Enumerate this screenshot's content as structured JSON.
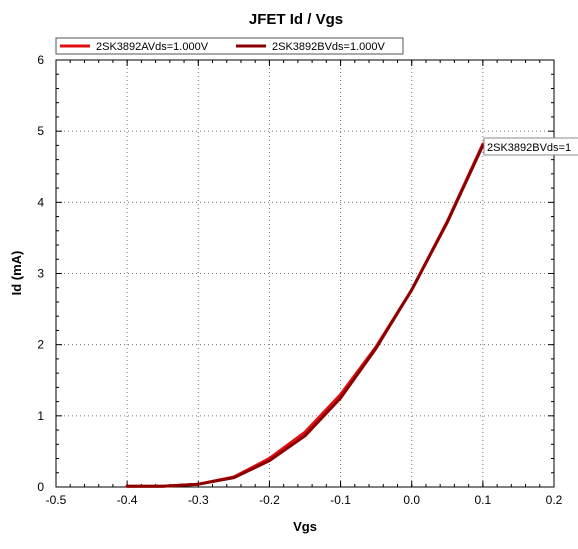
{
  "chart_data": {
    "type": "line",
    "title": "JFET Id / Vgs",
    "xlabel": "Vgs",
    "ylabel": "Id (mA)",
    "xlim": [
      -0.5,
      0.2
    ],
    "ylim": [
      0,
      6
    ],
    "xticks": [
      "-0.5",
      "-0.4",
      "-0.3",
      "-0.2",
      "-0.1",
      "0.0",
      "0.1",
      "0.2"
    ],
    "yticks": [
      "0",
      "1",
      "2",
      "3",
      "4",
      "5",
      "6"
    ],
    "grid": true,
    "legend_position": "top-left",
    "series": [
      {
        "name": "2SK3892AVds=1.000V",
        "color": "#e01010",
        "x": [
          -0.4,
          -0.35,
          -0.3,
          -0.25,
          -0.2,
          -0.15,
          -0.1,
          -0.05,
          0.0,
          0.05,
          0.1
        ],
        "y": [
          0.01,
          0.01,
          0.04,
          0.14,
          0.4,
          0.77,
          1.3,
          1.97,
          2.77,
          3.73,
          4.82
        ]
      },
      {
        "name": "2SK3892BVds=1.000V",
        "color": "#8b0000",
        "x": [
          -0.4,
          -0.35,
          -0.3,
          -0.25,
          -0.2,
          -0.15,
          -0.1,
          -0.05,
          0.0,
          0.05,
          0.1
        ],
        "y": [
          0.01,
          0.01,
          0.04,
          0.13,
          0.37,
          0.72,
          1.25,
          1.95,
          2.77,
          3.72,
          4.8
        ]
      }
    ],
    "annotation": "2SK3892BVds=1"
  }
}
